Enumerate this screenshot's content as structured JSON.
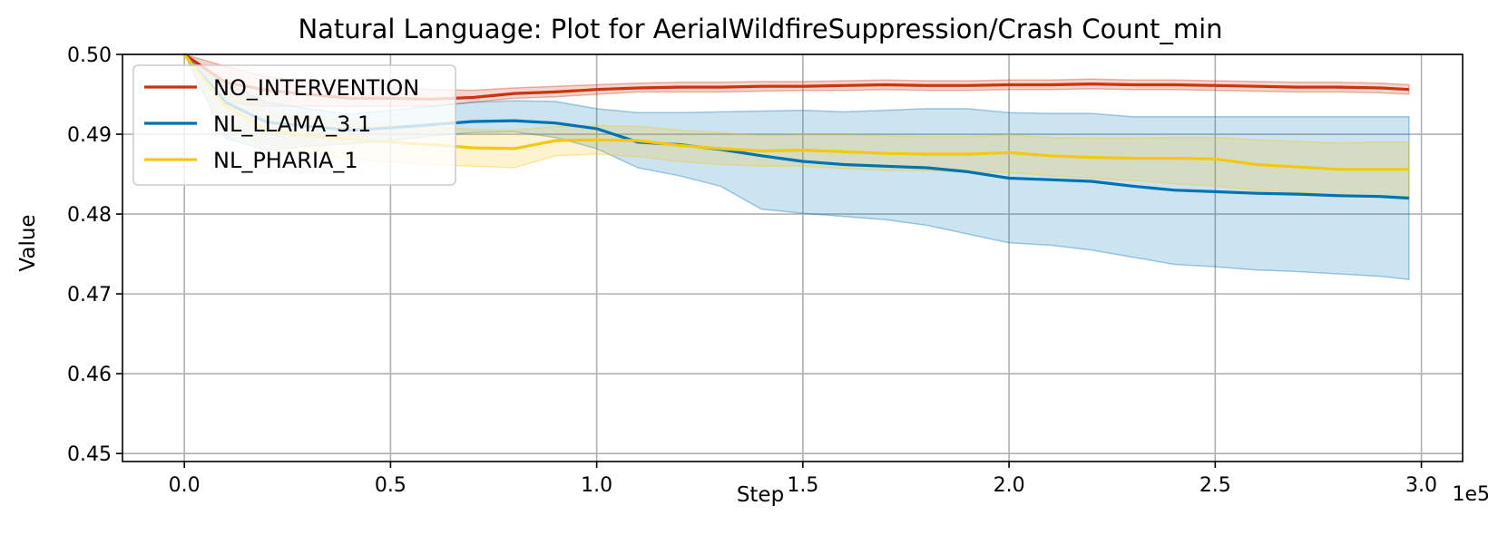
{
  "chart_data": {
    "type": "line",
    "title": "Natural Language: Plot for AerialWildfireSuppression/Crash Count_min",
    "xlabel": "Step",
    "ylabel": "Value",
    "x_offset_label": "1e5",
    "xlim": [
      -0.15,
      3.1
    ],
    "ylim": [
      0.449,
      0.5
    ],
    "x_ticks": [
      0.0,
      0.5,
      1.0,
      1.5,
      2.0,
      2.5,
      3.0
    ],
    "x_tick_labels": [
      "0.0",
      "0.5",
      "1.0",
      "1.5",
      "2.0",
      "2.5",
      "3.0"
    ],
    "y_ticks": [
      0.45,
      0.46,
      0.47,
      0.48,
      0.49,
      0.5
    ],
    "y_tick_labels": [
      "0.45",
      "0.46",
      "0.47",
      "0.48",
      "0.49",
      "0.50"
    ],
    "grid": true,
    "legend_position": "top-left",
    "series": [
      {
        "name": "NO_INTERVENTION",
        "color": "#cc3311",
        "x": [
          0.0,
          0.1,
          0.2,
          0.3,
          0.4,
          0.5,
          0.6,
          0.7,
          0.8,
          0.9,
          1.0,
          1.1,
          1.2,
          1.3,
          1.4,
          1.5,
          1.6,
          1.7,
          1.8,
          1.9,
          2.0,
          2.1,
          2.2,
          2.3,
          2.4,
          2.5,
          2.6,
          2.7,
          2.8,
          2.9,
          2.97
        ],
        "values": [
          0.5,
          0.4965,
          0.4955,
          0.495,
          0.4945,
          0.4945,
          0.4944,
          0.4946,
          0.4951,
          0.4953,
          0.4956,
          0.4958,
          0.4959,
          0.4959,
          0.496,
          0.496,
          0.4961,
          0.4962,
          0.4961,
          0.4961,
          0.4962,
          0.4962,
          0.4963,
          0.4962,
          0.4962,
          0.4961,
          0.496,
          0.4959,
          0.4959,
          0.4958,
          0.4956
        ],
        "lower": [
          0.5,
          0.494,
          0.4935,
          0.4935,
          0.4935,
          0.4935,
          0.4935,
          0.494,
          0.4945,
          0.4947,
          0.495,
          0.4953,
          0.4953,
          0.4953,
          0.4954,
          0.4955,
          0.4955,
          0.4956,
          0.4955,
          0.4955,
          0.4956,
          0.4956,
          0.4957,
          0.4956,
          0.4956,
          0.4955,
          0.4954,
          0.4953,
          0.4953,
          0.4952,
          0.495
        ],
        "upper": [
          0.5,
          0.4985,
          0.4972,
          0.4965,
          0.496,
          0.4958,
          0.4956,
          0.4955,
          0.4958,
          0.496,
          0.4962,
          0.4964,
          0.4965,
          0.4965,
          0.4966,
          0.4966,
          0.4967,
          0.4968,
          0.4967,
          0.4967,
          0.4968,
          0.4968,
          0.4969,
          0.4968,
          0.4968,
          0.4967,
          0.4966,
          0.4965,
          0.4965,
          0.4964,
          0.4962
        ]
      },
      {
        "name": "NL_LLAMA_3.1",
        "color": "#0072b2",
        "x": [
          0.0,
          0.1,
          0.2,
          0.3,
          0.4,
          0.5,
          0.6,
          0.7,
          0.8,
          0.9,
          1.0,
          1.1,
          1.2,
          1.3,
          1.4,
          1.5,
          1.6,
          1.7,
          1.8,
          1.9,
          2.0,
          2.1,
          2.2,
          2.3,
          2.4,
          2.5,
          2.6,
          2.7,
          2.8,
          2.9,
          2.97
        ],
        "values": [
          0.5,
          0.494,
          0.4915,
          0.491,
          0.4905,
          0.4908,
          0.4912,
          0.4916,
          0.4917,
          0.4914,
          0.4907,
          0.489,
          0.4887,
          0.4881,
          0.4873,
          0.4866,
          0.4862,
          0.486,
          0.4858,
          0.4853,
          0.4845,
          0.4843,
          0.4841,
          0.4835,
          0.483,
          0.4828,
          0.4826,
          0.4825,
          0.4823,
          0.4822,
          0.482
        ],
        "lower": [
          0.5,
          0.4895,
          0.488,
          0.4885,
          0.4888,
          0.4892,
          0.4898,
          0.4902,
          0.4903,
          0.4896,
          0.4882,
          0.4858,
          0.4848,
          0.4835,
          0.4806,
          0.4801,
          0.4797,
          0.4793,
          0.4786,
          0.4775,
          0.4764,
          0.4761,
          0.4755,
          0.4746,
          0.4737,
          0.4734,
          0.473,
          0.4728,
          0.4725,
          0.4722,
          0.4718
        ],
        "upper": [
          0.5,
          0.4965,
          0.494,
          0.4932,
          0.4925,
          0.493,
          0.4935,
          0.494,
          0.4942,
          0.4941,
          0.4932,
          0.4927,
          0.4927,
          0.4928,
          0.4929,
          0.493,
          0.4928,
          0.493,
          0.4932,
          0.4932,
          0.4927,
          0.4926,
          0.4926,
          0.4922,
          0.4922,
          0.4922,
          0.4922,
          0.4922,
          0.4922,
          0.4922,
          0.4922
        ]
      },
      {
        "name": "NL_PHARIA_1",
        "color": "#f5c710",
        "x": [
          0.0,
          0.1,
          0.2,
          0.3,
          0.4,
          0.5,
          0.6,
          0.7,
          0.8,
          0.9,
          1.0,
          1.1,
          1.2,
          1.3,
          1.4,
          1.5,
          1.6,
          1.7,
          1.8,
          1.9,
          2.0,
          2.1,
          2.2,
          2.3,
          2.4,
          2.5,
          2.6,
          2.7,
          2.8,
          2.9,
          2.97
        ],
        "values": [
          0.5,
          0.4935,
          0.4905,
          0.4898,
          0.4894,
          0.489,
          0.4887,
          0.4883,
          0.4882,
          0.4892,
          0.4893,
          0.4892,
          0.4886,
          0.4882,
          0.4879,
          0.488,
          0.4878,
          0.4876,
          0.4875,
          0.4875,
          0.4877,
          0.4873,
          0.4871,
          0.487,
          0.487,
          0.4869,
          0.4862,
          0.4859,
          0.4856,
          0.4856,
          0.4856
        ],
        "lower": [
          0.5,
          0.4905,
          0.4882,
          0.4875,
          0.487,
          0.4865,
          0.4862,
          0.486,
          0.4858,
          0.4873,
          0.4875,
          0.4872,
          0.4866,
          0.4862,
          0.486,
          0.486,
          0.4857,
          0.4855,
          0.4854,
          0.4853,
          0.4852,
          0.4848,
          0.4845,
          0.4842,
          0.4838,
          0.4835,
          0.483,
          0.4827,
          0.4824,
          0.4822,
          0.4822
        ],
        "upper": [
          0.5,
          0.4965,
          0.4928,
          0.492,
          0.4915,
          0.4912,
          0.491,
          0.4906,
          0.4905,
          0.491,
          0.4911,
          0.491,
          0.4905,
          0.4902,
          0.4898,
          0.4899,
          0.4899,
          0.4898,
          0.4897,
          0.4897,
          0.4899,
          0.4896,
          0.4895,
          0.4895,
          0.4896,
          0.4896,
          0.4893,
          0.4891,
          0.4889,
          0.489,
          0.489
        ]
      }
    ]
  }
}
